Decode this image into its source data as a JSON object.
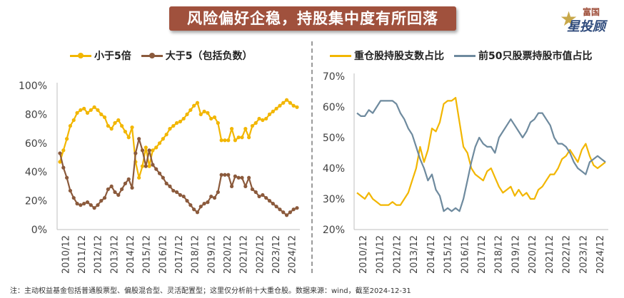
{
  "banner": {
    "title": "风险偏好企稳，持股集中度有所回落"
  },
  "logo": {
    "top": "富国",
    "main": "星投顾",
    "icon": "star-icon"
  },
  "footnote": "注：主动权益基金包括普通股票型、偏股混合型、灵活配置型；这里仅分析前十大重仓股。数据来源：wind，截至2024-12-31",
  "chart_data": [
    {
      "type": "line",
      "title": "",
      "xlabel": "",
      "ylabel": "",
      "ylim": [
        0,
        100
      ],
      "yticks": [
        "0%",
        "20%",
        "40%",
        "60%",
        "80%",
        "100%"
      ],
      "grid": false,
      "legend_position": "top-left",
      "x_ticks": [
        "2010/12",
        "2011/12",
        "2012/12",
        "2013/12",
        "2014/12",
        "2015/12",
        "2016/12",
        "2017/12",
        "2018/12",
        "2019/12",
        "2020/12",
        "2021/12",
        "2022/12",
        "2023/12",
        "2024/12"
      ],
      "series": [
        {
          "name": "小于5倍",
          "color": "#f2b600",
          "marker": "circle",
          "values": [
            47,
            55,
            63,
            72,
            76,
            81,
            83,
            84,
            81,
            83,
            85,
            83,
            80,
            78,
            72,
            70,
            74,
            76,
            72,
            68,
            64,
            71,
            47,
            36,
            44,
            57,
            44,
            55,
            57,
            60,
            63,
            66,
            70,
            72,
            74,
            75,
            77,
            80,
            83,
            86,
            88,
            80,
            82,
            81,
            77,
            78,
            74,
            62,
            62,
            62,
            70,
            62,
            64,
            64,
            70,
            64,
            72,
            74,
            77,
            76,
            77,
            80,
            82,
            84,
            86,
            88,
            90,
            88,
            86,
            85
          ]
        },
        {
          "name": "大于5（包括负数）",
          "color": "#8b5a3c",
          "marker": "circle",
          "values": [
            53,
            43,
            36,
            27,
            22,
            18,
            17,
            18,
            19,
            17,
            15,
            17,
            20,
            22,
            28,
            30,
            26,
            24,
            28,
            32,
            35,
            29,
            53,
            63,
            55,
            44,
            55,
            45,
            42,
            39,
            36,
            32,
            30,
            27,
            26,
            24,
            23,
            20,
            17,
            14,
            12,
            16,
            18,
            19,
            23,
            22,
            26,
            38,
            38,
            38,
            30,
            37,
            36,
            36,
            30,
            36,
            28,
            26,
            23,
            24,
            22,
            20,
            18,
            16,
            14,
            12,
            10,
            12,
            14,
            15
          ]
        }
      ]
    },
    {
      "type": "line",
      "title": "",
      "xlabel": "",
      "ylabel": "",
      "ylim": [
        20,
        70
      ],
      "yticks": [
        "20%",
        "30%",
        "40%",
        "50%",
        "60%",
        "70%"
      ],
      "grid": false,
      "legend_position": "top-left",
      "x_ticks": [
        "2010/12",
        "2011/12",
        "2012/12",
        "2013/12",
        "2014/12",
        "2015/12",
        "2016/12",
        "2017/12",
        "2018/12",
        "2019/12",
        "2020/12",
        "2021/12",
        "2022/12",
        "2023/12",
        "2024/12"
      ],
      "series": [
        {
          "name": "重仓股持股支数占比",
          "color": "#f2b600",
          "marker": "none",
          "values": [
            32,
            31,
            30,
            32,
            30,
            29,
            28,
            28,
            28,
            29,
            28,
            28,
            30,
            32,
            36,
            40,
            47,
            42,
            46,
            53,
            52,
            55,
            61,
            62,
            62,
            63,
            55,
            47,
            45,
            40,
            38,
            37,
            36,
            39,
            40,
            37,
            34,
            32,
            33,
            34,
            31,
            33,
            31,
            32,
            30,
            30,
            33,
            34,
            36,
            38,
            38,
            40,
            43,
            44,
            46,
            44,
            42,
            46,
            48,
            44,
            41,
            40,
            41,
            42
          ]
        },
        {
          "name": "前50只股票持股市值占比",
          "color": "#6e8a9e",
          "marker": "none",
          "values": [
            58,
            57,
            57,
            59,
            58,
            60,
            62,
            62,
            62,
            62,
            61,
            58,
            56,
            53,
            51,
            47,
            43,
            40,
            36,
            38,
            33,
            31,
            26,
            27,
            26,
            27,
            26,
            30,
            36,
            42,
            47,
            50,
            48,
            47,
            47,
            45,
            50,
            52,
            54,
            56,
            54,
            52,
            50,
            52,
            55,
            56,
            58,
            58,
            56,
            54,
            50,
            48,
            48,
            47,
            45,
            42,
            40,
            39,
            38,
            42,
            43,
            44,
            43,
            42
          ]
        }
      ]
    }
  ]
}
